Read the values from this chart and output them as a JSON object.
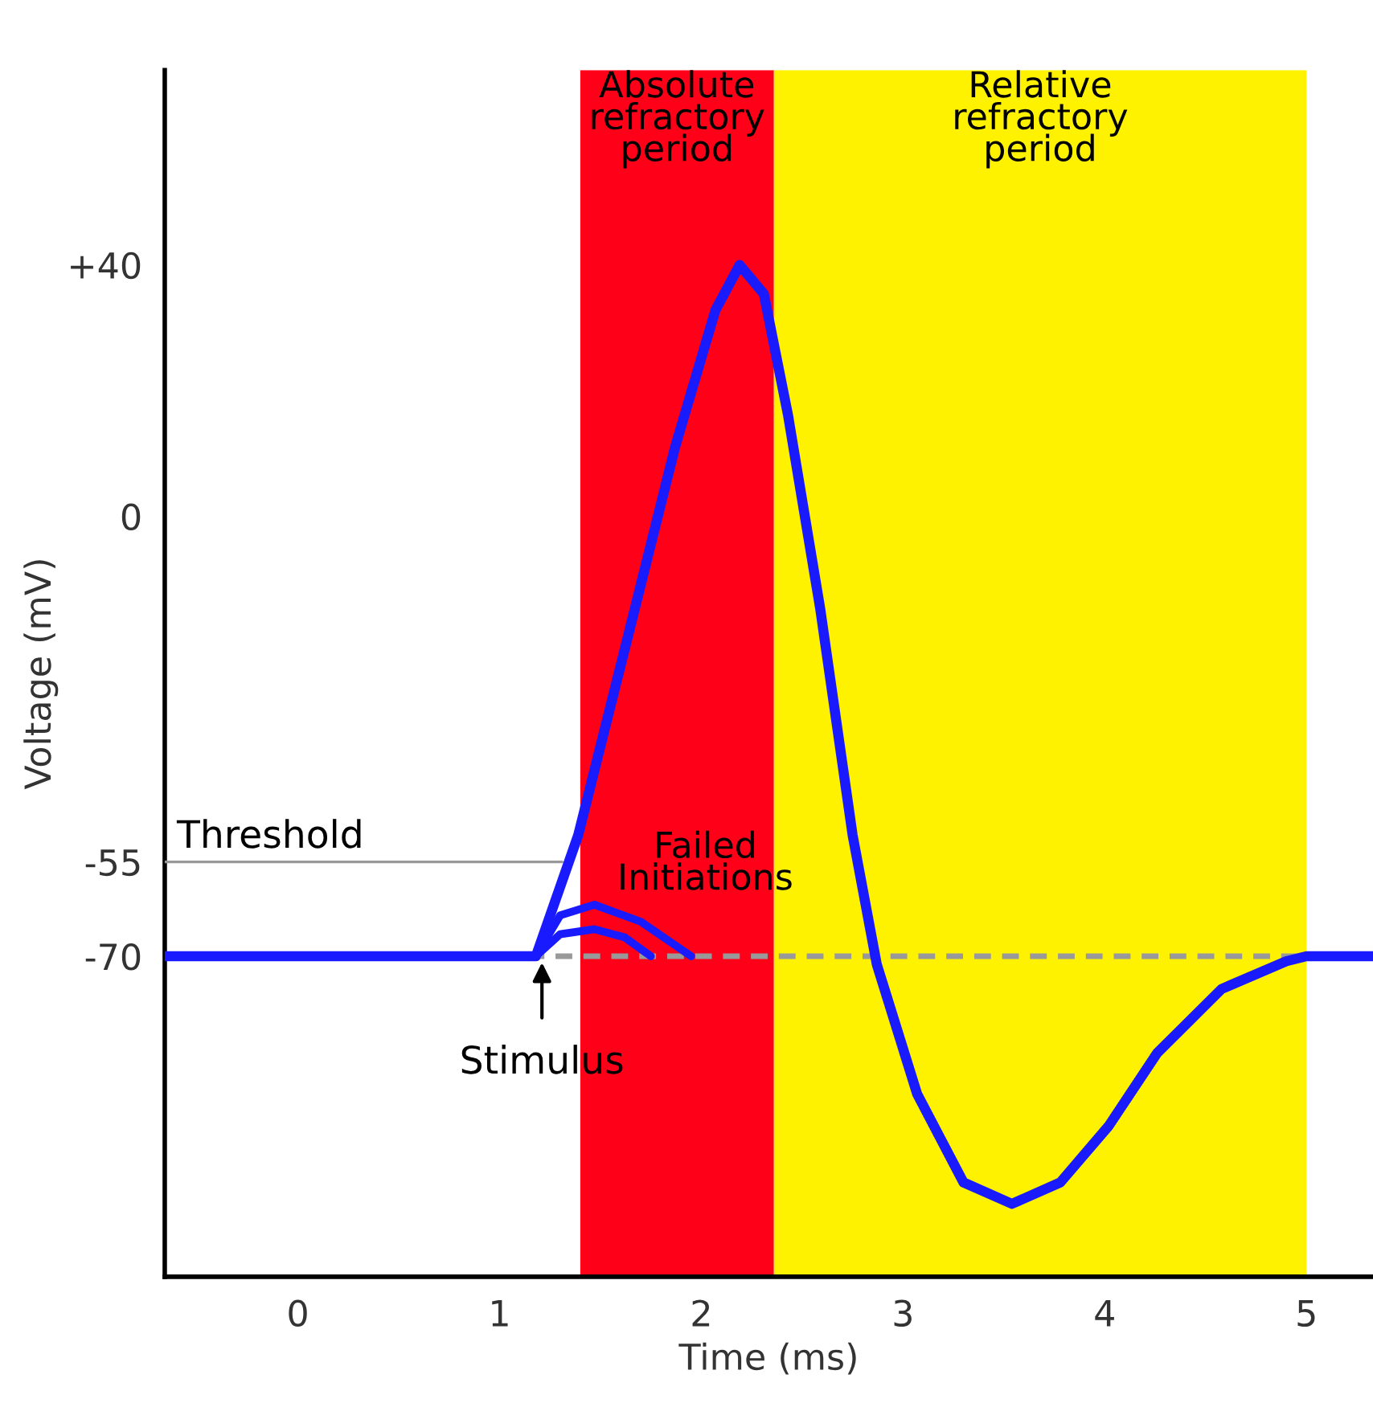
{
  "chart_data": {
    "type": "line",
    "xlabel": "Time (ms)",
    "ylabel": "Voltage (mV)",
    "xlim": [
      -0.66,
      5.33
    ],
    "xticks": [
      0,
      1,
      2,
      3,
      4,
      5
    ],
    "ylim": [
      -121,
      71
    ],
    "yticks": [
      {
        "value": 40,
        "label": "+40"
      },
      0,
      -55,
      -70
    ],
    "grid": false,
    "bands": [
      {
        "axis": "x",
        "from": 1.4,
        "to": 2.36,
        "label": "Absolute\nrefractory\nperiod",
        "color": "#ff0019"
      },
      {
        "axis": "x",
        "from": 2.36,
        "to": 5.0,
        "label": "Relative\nrefractory\nperiod",
        "color": "#fff200"
      }
    ],
    "ref_lines": [
      {
        "axis": "y",
        "value": -70,
        "color": "#999999",
        "line_style": "dashed"
      }
    ],
    "series": [
      {
        "color": "#999999",
        "x": [
          -0.66,
          1.31
        ],
        "values": [
          -55,
          -55
        ]
      },
      {
        "color": "#1a1aff",
        "x": [
          -0.66,
          1.18,
          1.39,
          1.63,
          1.87,
          2.07,
          2.19,
          2.31,
          2.43,
          2.59,
          2.75,
          2.87,
          3.07,
          3.3,
          3.54,
          3.78,
          4.02,
          4.26,
          4.58,
          4.9,
          5.0,
          5.33
        ],
        "values": [
          -70,
          -70,
          -50.7,
          -19.9,
          11,
          32.8,
          40,
          35.4,
          16.1,
          -14.8,
          -50.7,
          -71.3,
          -91.9,
          -106,
          -109.4,
          -106,
          -97,
          -85.4,
          -75.2,
          -70.8,
          -70,
          -70
        ]
      },
      {
        "color": "#1a1aff",
        "x": [
          1.18,
          1.3,
          1.47,
          1.7,
          1.95
        ],
        "values": [
          -70,
          -63.5,
          -61.8,
          -64.5,
          -70
        ]
      },
      {
        "color": "#1a1aff",
        "x": [
          1.18,
          1.3,
          1.47,
          1.62,
          1.75
        ],
        "values": [
          -70,
          -66.5,
          -65.7,
          -67,
          -70
        ]
      }
    ],
    "annotations": [
      {
        "text": "Threshold",
        "x": -0.6,
        "y": -55
      },
      "Failed\nInitiations",
      {
        "text": "Stimulus",
        "x": 1.21,
        "y": -70
      }
    ]
  }
}
